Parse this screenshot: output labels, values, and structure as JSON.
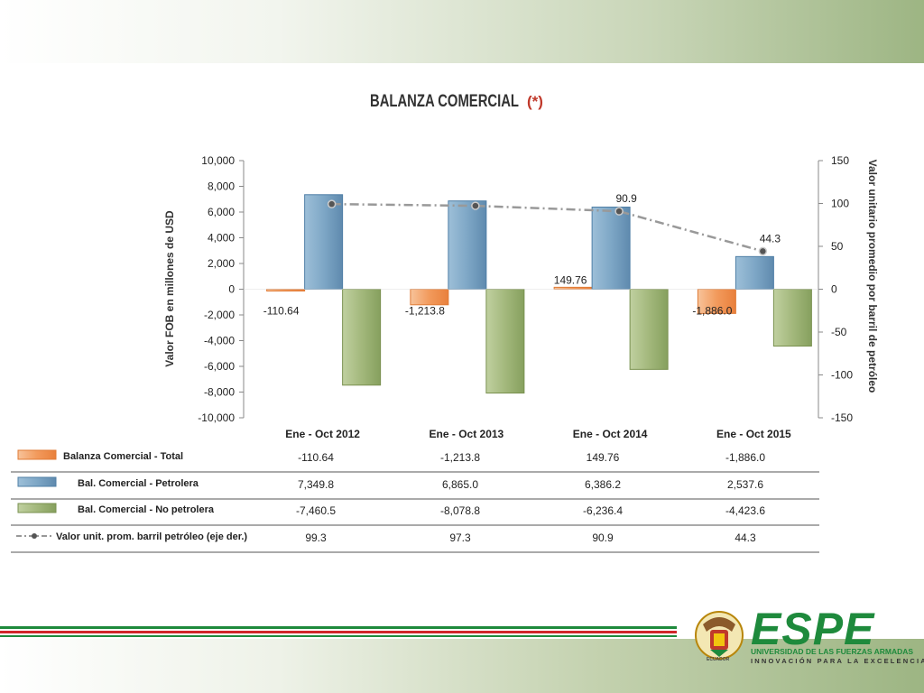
{
  "chart_data": {
    "type": "bar",
    "title": "BALANZA COMERCIAL",
    "title_suffix": "(*)",
    "categories": [
      "Ene - Oct  2012",
      "Ene - Oct  2013",
      "Ene - Oct  2014",
      "Ene - Oct  2015"
    ],
    "series": [
      {
        "name": "Balanza Comercial - Total",
        "values": [
          -110.64,
          -1213.8,
          149.76,
          -1886.0
        ],
        "labels": [
          "-110.64",
          "-1,213.8",
          "149.76",
          "-1,886.0"
        ],
        "color": "#f4a460"
      },
      {
        "name": "Bal. Comercial - Petrolera",
        "values": [
          7349.8,
          6865.0,
          6386.2,
          2537.6
        ],
        "labels": [
          "7,349.8",
          "6,865.0",
          "6,386.2",
          "2,537.6"
        ],
        "color": "#7fa6c4"
      },
      {
        "name": "Bal. Comercial - No petrolera",
        "values": [
          -7460.5,
          -8078.8,
          -6236.4,
          -4423.6
        ],
        "labels": [
          "-7,460.5",
          "-8,078.8",
          "-6,236.4",
          "-4,423.6"
        ],
        "color": "#a3b87c"
      }
    ],
    "line_series": {
      "name": "Valor unit. prom. barril petróleo (eje der.)",
      "values": [
        99.3,
        97.3,
        90.9,
        44.3
      ],
      "labels": [
        "99.3",
        "97.3",
        "90.9",
        "44.3"
      ],
      "axis": "right",
      "color": "#777777"
    },
    "point_labels": {
      "total": [
        "-110.64",
        "-1,213.8",
        "149.76",
        "-1,886.0"
      ],
      "oil_price": [
        "",
        "",
        "90.9",
        "44.3"
      ]
    },
    "ylabel": "Valor FOB en millones de USD",
    "ylabel_right": "Valor unitario promedio por barril de petróleo",
    "ylim": [
      -10000,
      10000
    ],
    "ylim_right": [
      -150,
      150
    ],
    "yticks": [
      "10,000",
      "8,000",
      "6,000",
      "4,000",
      "2,000",
      "0",
      "-2,000",
      "-4,000",
      "-6,000",
      "-8,000",
      "-10,000"
    ],
    "yticks_right": [
      "150",
      "100",
      "50",
      "0",
      "-50",
      "-100",
      "-150"
    ],
    "grid": false,
    "legend_position": "bottom-table"
  },
  "logo": {
    "name": "ESPE",
    "subtitle": "UNIVERSIDAD DE LAS FUERZAS ARMADAS",
    "tagline": "INNOVACIÓN PARA LA EXCELENCIA",
    "seal_text": "ECUADOR",
    "color": "#1e8a3c"
  }
}
